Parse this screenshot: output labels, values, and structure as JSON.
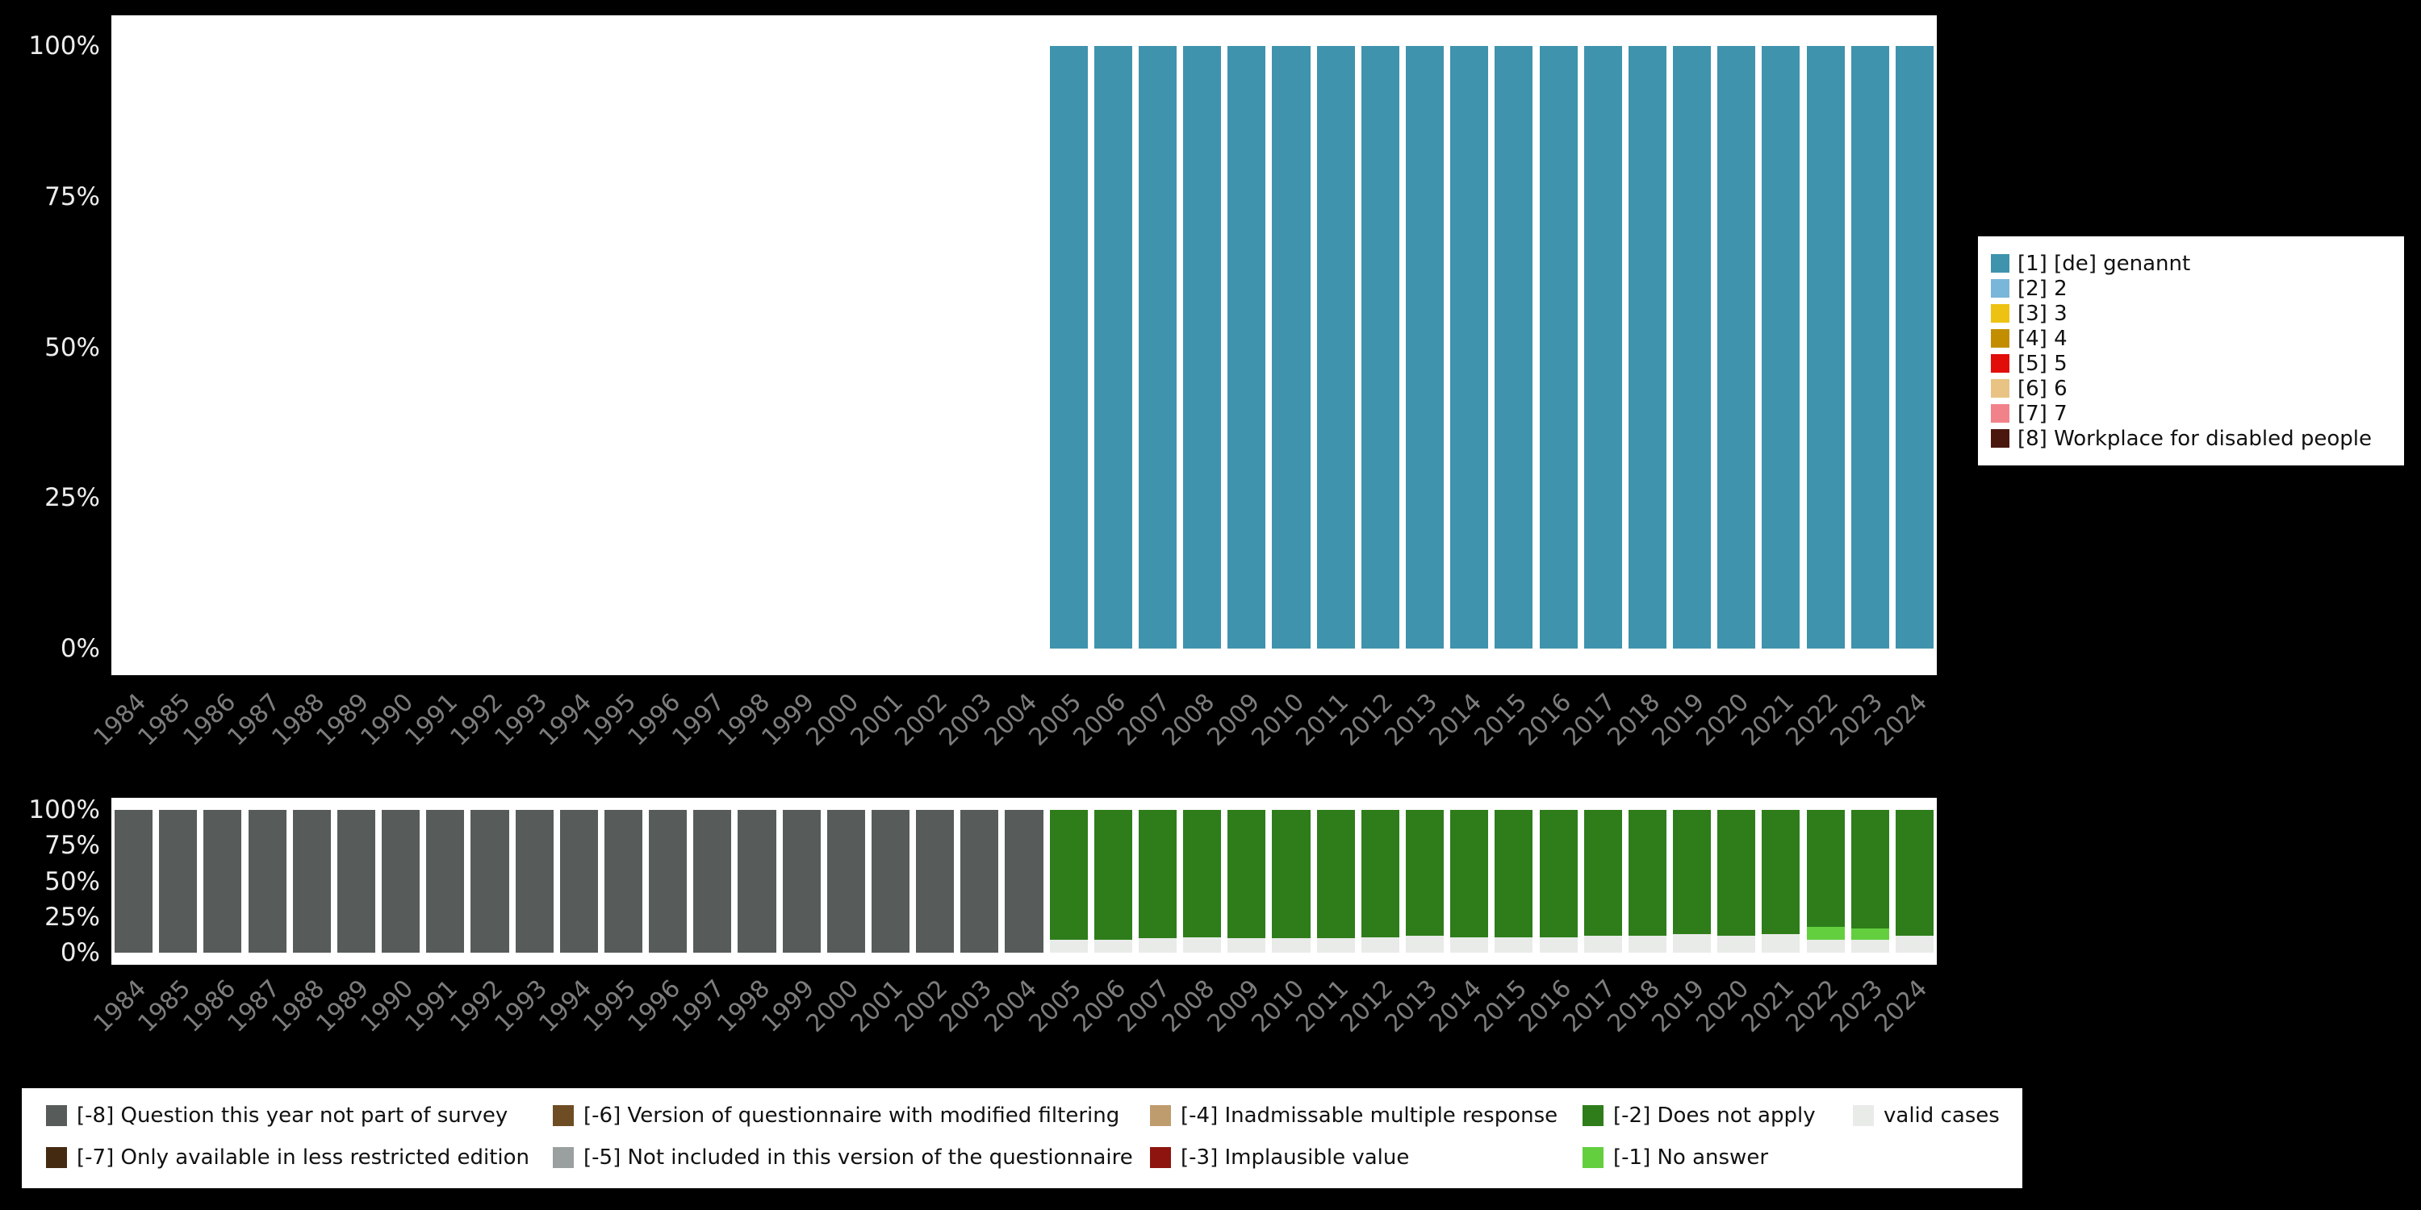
{
  "colors": {
    "background": "#000000",
    "plot_background": "#ffffff",
    "y_tick_text": "#ededed",
    "x_tick_text": "#7d7d7d",
    "legend_background": "#ffffff",
    "legend_text": "#111111"
  },
  "y_axis": {
    "ticks": [
      {
        "label": "100%",
        "value": 100
      },
      {
        "label": "75%",
        "value": 75
      },
      {
        "label": "50%",
        "value": 50
      },
      {
        "label": "25%",
        "value": 25
      },
      {
        "label": "0%",
        "value": 0
      }
    ]
  },
  "chart_data": [
    {
      "id": "top-frequency-chart",
      "type": "bar",
      "stacked": true,
      "title": "",
      "xlabel": "",
      "ylabel": "",
      "ylim": [
        0,
        100
      ],
      "grid": false,
      "legend_position": "right",
      "x": [
        1984,
        1985,
        1986,
        1987,
        1988,
        1989,
        1990,
        1991,
        1992,
        1993,
        1994,
        1995,
        1996,
        1997,
        1998,
        1999,
        2000,
        2001,
        2002,
        2003,
        2004,
        2005,
        2006,
        2007,
        2008,
        2009,
        2010,
        2011,
        2012,
        2013,
        2014,
        2015,
        2016,
        2017,
        2018,
        2019,
        2020,
        2021,
        2022,
        2023,
        2024
      ],
      "series": [
        {
          "key": "genannt",
          "name": "[1] [de] genannt",
          "color": "#3f93ad",
          "values": [
            0,
            0,
            0,
            0,
            0,
            0,
            0,
            0,
            0,
            0,
            0,
            0,
            0,
            0,
            0,
            0,
            0,
            0,
            0,
            0,
            0,
            100,
            100,
            100,
            100,
            100,
            100,
            100,
            100,
            100,
            100,
            100,
            100,
            100,
            100,
            100,
            100,
            100,
            100,
            100,
            100
          ]
        }
      ]
    },
    {
      "id": "bottom-missings-chart",
      "type": "bar",
      "stacked": true,
      "title": "",
      "xlabel": "",
      "ylabel": "",
      "ylim": [
        0,
        100
      ],
      "grid": false,
      "legend_position": "bottom",
      "x": [
        1984,
        1985,
        1986,
        1987,
        1988,
        1989,
        1990,
        1991,
        1992,
        1993,
        1994,
        1995,
        1996,
        1997,
        1998,
        1999,
        2000,
        2001,
        2002,
        2003,
        2004,
        2005,
        2006,
        2007,
        2008,
        2009,
        2010,
        2011,
        2012,
        2013,
        2014,
        2015,
        2016,
        2017,
        2018,
        2019,
        2020,
        2021,
        2022,
        2023,
        2024
      ],
      "series": [
        {
          "key": "valid-cases",
          "name": "valid cases",
          "color": "#e9ebe9",
          "values": [
            0,
            0,
            0,
            0,
            0,
            0,
            0,
            0,
            0,
            0,
            0,
            0,
            0,
            0,
            0,
            0,
            0,
            0,
            0,
            0,
            0,
            9,
            9,
            10,
            11,
            10,
            10,
            10,
            11,
            12,
            11,
            11,
            11,
            12,
            12,
            13,
            12,
            13,
            9,
            9,
            12
          ]
        },
        {
          "key": "no-answer",
          "name": "[-1] No answer",
          "color": "#63cf3f",
          "values": [
            0,
            0,
            0,
            0,
            0,
            0,
            0,
            0,
            0,
            0,
            0,
            0,
            0,
            0,
            0,
            0,
            0,
            0,
            0,
            0,
            0,
            0,
            0,
            0,
            0,
            0,
            0,
            0,
            0,
            0,
            0,
            0,
            0,
            0,
            0,
            0,
            0,
            0,
            9,
            8,
            0
          ]
        },
        {
          "key": "does-not-apply",
          "name": "[-2] Does not apply",
          "color": "#2e7d1a",
          "values": [
            0,
            0,
            0,
            0,
            0,
            0,
            0,
            0,
            0,
            0,
            0,
            0,
            0,
            0,
            0,
            0,
            0,
            0,
            0,
            0,
            0,
            91,
            91,
            90,
            89,
            90,
            90,
            90,
            89,
            88,
            89,
            89,
            89,
            88,
            88,
            87,
            88,
            87,
            82,
            83,
            88
          ]
        },
        {
          "key": "not-part-of-survey",
          "name": "[-8] Question this year not part of survey",
          "color": "#575c5b",
          "values": [
            100,
            100,
            100,
            100,
            100,
            100,
            100,
            100,
            100,
            100,
            100,
            100,
            100,
            100,
            100,
            100,
            100,
            100,
            100,
            100,
            100,
            0,
            0,
            0,
            0,
            0,
            0,
            0,
            0,
            0,
            0,
            0,
            0,
            0,
            0,
            0,
            0,
            0,
            0,
            0,
            0
          ]
        }
      ]
    }
  ],
  "legend_top": {
    "items": [
      {
        "label": "[1] [de] genannt",
        "color": "#3f93ad"
      },
      {
        "label": "[2] 2",
        "color": "#7ab6d9"
      },
      {
        "label": "[3] 3",
        "color": "#edc213"
      },
      {
        "label": "[4] 4",
        "color": "#c28e00"
      },
      {
        "label": "[5] 5",
        "color": "#e00d09"
      },
      {
        "label": "[6] 6",
        "color": "#e8c383"
      },
      {
        "label": "[7] 7",
        "color": "#f2828a"
      },
      {
        "label": "[8] Workplace for disabled people",
        "color": "#4a170e"
      }
    ]
  },
  "legend_bottom": {
    "items": [
      {
        "label": "[-8] Question this year not part of survey",
        "color": "#575c5b",
        "row": 0,
        "col": 0
      },
      {
        "label": "[-7] Only available in less restricted edition",
        "color": "#452a12",
        "row": 1,
        "col": 0
      },
      {
        "label": "[-6] Version of questionnaire with modified filtering",
        "color": "#6e4d24",
        "row": 0,
        "col": 1
      },
      {
        "label": "[-5] Not included in this version of the questionnaire",
        "color": "#9aa09f",
        "row": 1,
        "col": 1
      },
      {
        "label": "[-4] Inadmissable multiple response",
        "color": "#bf9c6d",
        "row": 0,
        "col": 2
      },
      {
        "label": "[-3] Implausible value",
        "color": "#8e150f",
        "row": 1,
        "col": 2
      },
      {
        "label": "[-2] Does not apply",
        "color": "#2e7d1a",
        "row": 0,
        "col": 3
      },
      {
        "label": "[-1] No answer",
        "color": "#63cf3f",
        "row": 1,
        "col": 3
      },
      {
        "label": "valid cases",
        "color": "#e9ebe9",
        "row": 0,
        "col": 4
      }
    ]
  }
}
